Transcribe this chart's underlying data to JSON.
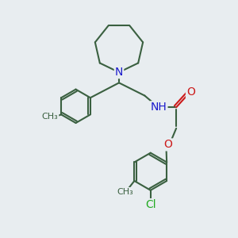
{
  "bg_color": "#e8edf0",
  "bond_color": "#3a6040",
  "N_color": "#1a1acc",
  "O_color": "#cc1a1a",
  "Cl_color": "#22aa22",
  "line_width": 1.5,
  "font_size": 10,
  "small_font": 8,
  "xlim": [
    0,
    10
  ],
  "ylim": [
    0,
    10
  ]
}
